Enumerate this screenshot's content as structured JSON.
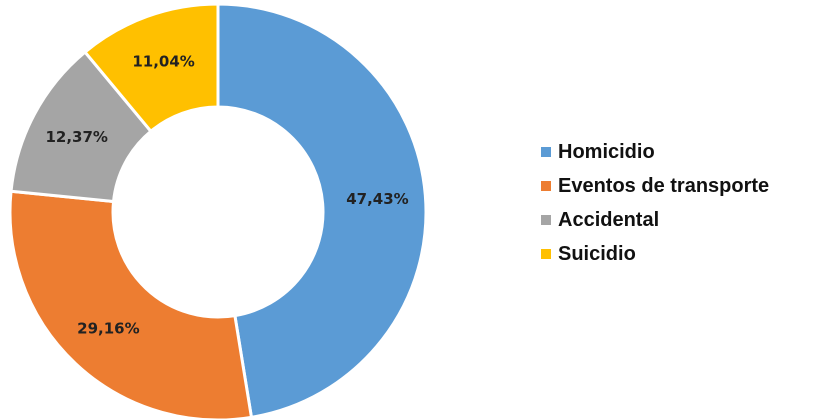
{
  "chart_data": {
    "type": "pie",
    "donut": true,
    "title": "",
    "legend_position": "right",
    "categories": [
      "Homicidio",
      "Eventos de transporte",
      "Accidental",
      "Suicidio"
    ],
    "values": [
      47.43,
      29.16,
      12.37,
      11.04
    ],
    "labels": [
      "47,43%",
      "29,16%",
      "12,37%",
      "11,04%"
    ],
    "colors": [
      "#5b9bd5",
      "#ed7d31",
      "#a5a5a5",
      "#ffc000"
    ],
    "unit": "%"
  }
}
